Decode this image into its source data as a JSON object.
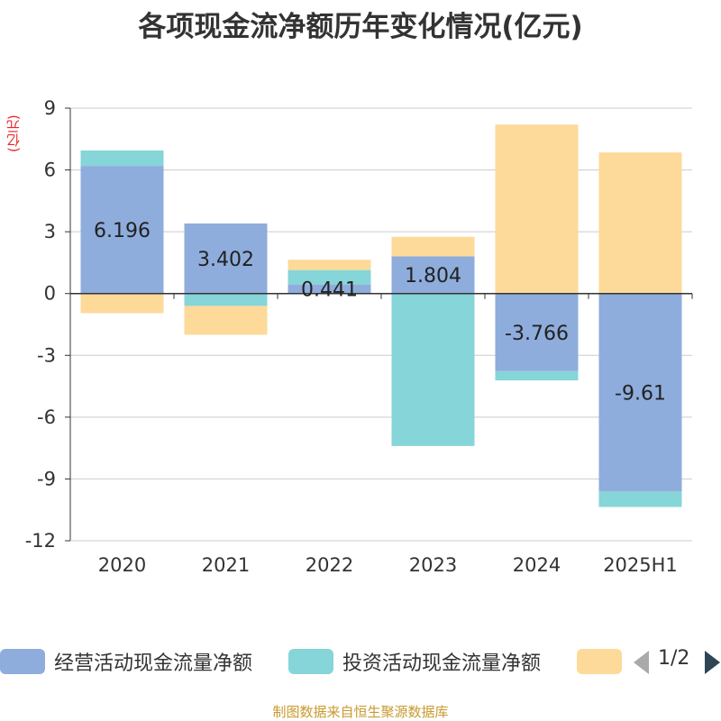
{
  "title": "各项现金流净额历年变化情况(亿元)",
  "unit_label": "(亿元)",
  "source": "制图数据来自恒生聚源数据库",
  "pager": "1/2",
  "colors": {
    "operating": "#8eaddc",
    "investing": "#86d5d8",
    "financing": "#fdd99a",
    "axis": "#333333",
    "grid": "#cccccc"
  },
  "chart_data": {
    "type": "bar",
    "stacked": true,
    "categories": [
      "2020",
      "2021",
      "2022",
      "2023",
      "2024",
      "2025H1"
    ],
    "y_ticks": [
      9,
      6,
      3,
      0,
      -3,
      -6,
      -9,
      -12
    ],
    "ylim": [
      -12,
      9
    ],
    "grid": true,
    "legend_position": "bottom",
    "series": [
      {
        "name": "经营活动现金流量净额",
        "values": [
          6.196,
          3.402,
          0.441,
          1.804,
          -3.766,
          -9.61
        ],
        "labels": [
          "6.196",
          "3.402",
          "0.441",
          "1.804",
          "-3.766",
          "-9.61"
        ]
      },
      {
        "name": "投资活动现金流量净额",
        "values": [
          0.75,
          -0.6,
          0.7,
          -7.4,
          -0.45,
          -0.75
        ]
      },
      {
        "name": null,
        "values": [
          -0.95,
          -1.4,
          0.5,
          0.95,
          8.2,
          6.85
        ]
      }
    ]
  },
  "legend": [
    {
      "label": "经营活动现金流量净额"
    },
    {
      "label": "投资活动现金流量净额"
    },
    {
      "label": ""
    }
  ]
}
